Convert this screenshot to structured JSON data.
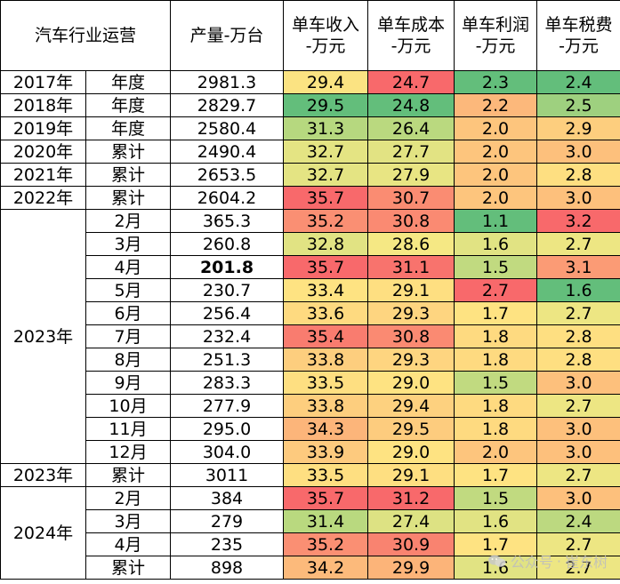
{
  "headers": [
    "汽车行业运营",
    "产量-万台",
    "单车收入\n-万元",
    "单车成本\n-万元",
    "单车利润\n-万元",
    "单车税费\n-万元"
  ],
  "rows": [
    {
      "year": "2017年",
      "period": "年度",
      "output": "2981.3",
      "revenue": "29.4",
      "cost": "24.7",
      "profit": "2.3",
      "tax": "2.4",
      "colors": [
        "#FBE382",
        "#F8696B",
        "#63BE7B",
        "#63BE7B"
      ]
    },
    {
      "year": "2018年",
      "period": "年度",
      "output": "2829.7",
      "revenue": "29.5",
      "cost": "24.8",
      "profit": "2.2",
      "tax": "2.5",
      "colors": [
        "#63BE7B",
        "#63BE7B",
        "#FCB87B",
        "#9ED07F"
      ]
    },
    {
      "year": "2019年",
      "period": "年度",
      "output": "2580.4",
      "revenue": "31.3",
      "cost": "26.4",
      "profit": "2.0",
      "tax": "2.9",
      "colors": [
        "#B6D87F",
        "#BAD97F",
        "#FDC57D",
        "#FDCE7E"
      ]
    },
    {
      "year": "2020年",
      "period": "累计",
      "output": "2490.4",
      "revenue": "32.7",
      "cost": "27.7",
      "profit": "2.0",
      "tax": "3.0",
      "colors": [
        "#E4E483",
        "#E2E383",
        "#FDC57D",
        "#FDC07C"
      ]
    },
    {
      "year": "2021年",
      "period": "累计",
      "output": "2653.5",
      "revenue": "32.7",
      "cost": "27.9",
      "profit": "2.0",
      "tax": "2.8",
      "colors": [
        "#E4E483",
        "#E8E583",
        "#FDC57D",
        "#FEDF81"
      ]
    },
    {
      "year": "2022年",
      "period": "累计",
      "output": "2604.2",
      "revenue": "35.7",
      "cost": "30.7",
      "profit": "2.0",
      "tax": "3.0",
      "colors": [
        "#F8696B",
        "#FA8C72",
        "#FDC57D",
        "#FDC07C"
      ]
    },
    {
      "year": "",
      "period": "2月",
      "output": "365.3",
      "revenue": "35.2",
      "cost": "30.8",
      "profit": "1.1",
      "tax": "3.2",
      "colors": [
        "#FA8F73",
        "#FA8A72",
        "#63BE7B",
        "#F8696B"
      ]
    },
    {
      "year": "",
      "period": "3月",
      "output": "260.8",
      "revenue": "32.8",
      "cost": "28.6",
      "profit": "1.6",
      "tax": "2.7",
      "colors": [
        "#E1E383",
        "#F5E884",
        "#E1E383",
        "#EDE683"
      ]
    },
    {
      "year": "",
      "period": "4月",
      "output": "201.8",
      "revenue": "35.7",
      "cost": "31.1",
      "profit": "1.5",
      "tax": "3.1",
      "colors": [
        "#F8696B",
        "#F8736D",
        "#C1DA80",
        "#FB9B75"
      ],
      "bold": true
    },
    {
      "year": "",
      "period": "5月",
      "output": "230.7",
      "revenue": "33.4",
      "cost": "29.1",
      "profit": "2.7",
      "tax": "1.6",
      "colors": [
        "#FEE382",
        "#FEDF81",
        "#F8696B",
        "#63BE7B"
      ]
    },
    {
      "year": "",
      "period": "6月",
      "output": "256.4",
      "revenue": "33.6",
      "cost": "29.3",
      "profit": "1.7",
      "tax": "2.7",
      "colors": [
        "#FEDA80",
        "#FED580",
        "#FEE382",
        "#EDE683"
      ]
    },
    {
      "year": "",
      "period": "7月",
      "output": "232.4",
      "revenue": "35.4",
      "cost": "30.8",
      "profit": "1.8",
      "tax": "2.8",
      "colors": [
        "#F97C6F",
        "#FA8A72",
        "#FEDA80",
        "#FEDF81"
      ]
    },
    {
      "year": "",
      "period": "8月",
      "output": "251.3",
      "revenue": "33.8",
      "cost": "29.3",
      "profit": "1.8",
      "tax": "2.8",
      "colors": [
        "#FDCE7E",
        "#FED580",
        "#FEDA80",
        "#FEDF81"
      ]
    },
    {
      "year": "",
      "period": "9月",
      "output": "283.3",
      "revenue": "33.5",
      "cost": "29.0",
      "profit": "1.5",
      "tax": "3.0",
      "colors": [
        "#FEDF81",
        "#FEE382",
        "#C1DA80",
        "#FDC07C"
      ]
    },
    {
      "year": "",
      "period": "10月",
      "output": "277.9",
      "revenue": "33.8",
      "cost": "29.4",
      "profit": "1.8",
      "tax": "2.7",
      "colors": [
        "#FDCE7E",
        "#FDD17F",
        "#FEDA80",
        "#EDE683"
      ]
    },
    {
      "year": "",
      "period": "11月",
      "output": "295.0",
      "revenue": "34.3",
      "cost": "29.5",
      "profit": "1.8",
      "tax": "3.0",
      "colors": [
        "#FCB57A",
        "#FDCC7E",
        "#FEDA80",
        "#FDC07C"
      ]
    },
    {
      "year": "",
      "period": "12月",
      "output": "304.0",
      "revenue": "33.9",
      "cost": "29.0",
      "profit": "2.0",
      "tax": "3.0",
      "colors": [
        "#FDCA7E",
        "#FEE382",
        "#FDC57D",
        "#FDC07C"
      ]
    },
    {
      "year": "2023年",
      "period": "累计",
      "output": "3011",
      "revenue": "33.5",
      "cost": "29.1",
      "profit": "1.7",
      "tax": "2.7",
      "colors": [
        "#FEDF81",
        "#FEDF81",
        "#FEE382",
        "#EDE683"
      ]
    },
    {
      "year": "",
      "period": "2月",
      "output": "384",
      "revenue": "35.7",
      "cost": "31.2",
      "profit": "1.5",
      "tax": "3.0",
      "colors": [
        "#F8696B",
        "#F8696B",
        "#C1DA80",
        "#FDC07C"
      ]
    },
    {
      "year": "",
      "period": "3月",
      "output": "279",
      "revenue": "31.4",
      "cost": "27.4",
      "profit": "1.6",
      "tax": "2.4",
      "colors": [
        "#B9D97F",
        "#DDE283",
        "#E1E383",
        "#BCD980"
      ]
    },
    {
      "year": "",
      "period": "4月",
      "output": "235",
      "revenue": "35.2",
      "cost": "30.9",
      "profit": "1.7",
      "tax": "2.7",
      "colors": [
        "#FA8F73",
        "#F98370",
        "#FEE382",
        "#EDE683"
      ]
    },
    {
      "year": "",
      "period": "累计",
      "output": "898",
      "revenue": "34.2",
      "cost": "29.9",
      "profit": "1.6",
      "tax": "2.7",
      "colors": [
        "#FCBA7B",
        "#FCB479",
        "#E1E383",
        "#EDE683"
      ]
    }
  ],
  "merged_years": [
    {
      "label": "2023年",
      "start": 6,
      "span": 11
    },
    {
      "label": "2024年",
      "start": 18,
      "span": 4
    }
  ],
  "watermark": {
    "text1": "公众号",
    "separator": "·",
    "text2": "崔东树",
    "icon": "wechat-icon"
  }
}
